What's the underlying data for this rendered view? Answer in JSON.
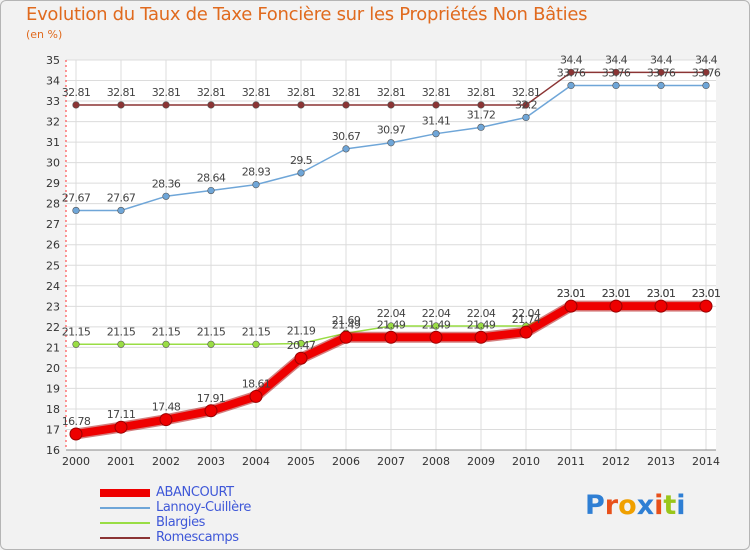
{
  "title": "Evolution du Taux de Taxe Foncière sur les Propriétés Non Bâties",
  "unit": "(en %)",
  "logo": [
    "P",
    "r",
    "o",
    "x",
    "i",
    "t",
    "i"
  ],
  "logo_colors": [
    "#2f7fd4",
    "#e8501a",
    "#f0a000",
    "#2f7fd4",
    "#e8501a",
    "#9ac61a",
    "#2f7fd4"
  ],
  "chart_data": {
    "type": "line",
    "title": "Evolution du Taux de Taxe Foncière sur les Propriétés Non Bâties",
    "ylabel": "(en %)",
    "xlabel": "",
    "x": [
      "2000",
      "2001",
      "2002",
      "2003",
      "2004",
      "2005",
      "2006",
      "2007",
      "2008",
      "2009",
      "2010",
      "2011",
      "2012",
      "2013",
      "2014"
    ],
    "ylim": [
      16,
      35
    ],
    "yticks": [
      16,
      17,
      18,
      19,
      20,
      21,
      22,
      23,
      24,
      25,
      26,
      27,
      28,
      29,
      30,
      31,
      32,
      33,
      34,
      35
    ],
    "grid": true,
    "legend_position": "bottom-left",
    "series": [
      {
        "name": "ABANCOURT",
        "color": "#ee0000",
        "values": [
          16.78,
          17.11,
          17.48,
          17.91,
          18.61,
          20.47,
          21.49,
          21.49,
          21.49,
          21.49,
          21.74,
          23.01,
          23.01,
          23.01,
          23.01
        ],
        "labels": [
          "16.78",
          "17.11",
          "17.48",
          "17.91",
          "18.61",
          "20.47",
          "21.49",
          "21.49",
          "21.49",
          "21.49",
          "21.74",
          "23.01",
          "23.01",
          "23.01",
          "23.01"
        ]
      },
      {
        "name": "Lannoy-Cuillère",
        "color": "#6fa6d8",
        "values": [
          27.67,
          27.67,
          28.36,
          28.64,
          28.93,
          29.5,
          30.67,
          30.97,
          31.41,
          31.72,
          32.2,
          33.76,
          33.76,
          33.76,
          33.76
        ],
        "labels": [
          "27.67",
          "27.67",
          "28.36",
          "28.64",
          "28.93",
          "29.5",
          "30.67",
          "30.97",
          "31.41",
          "31.72",
          "32.2",
          "33.76",
          "33.76",
          "33.76",
          "33.76"
        ]
      },
      {
        "name": "Blargies",
        "color": "#99dd44",
        "values": [
          21.15,
          21.15,
          21.15,
          21.15,
          21.15,
          21.19,
          21.69,
          22.04,
          22.04,
          22.04,
          22.04,
          23.01,
          23.01,
          23.01,
          23.01
        ],
        "labels": [
          "21.15",
          "21.15",
          "21.15",
          "21.15",
          "21.15",
          "21.19",
          "21.69",
          "22.04",
          "22.04",
          "22.04",
          "22.04",
          "23.01",
          "23.01",
          "23.01",
          "23.01"
        ]
      },
      {
        "name": "Romescamps",
        "color": "#8b3434",
        "values": [
          32.81,
          32.81,
          32.81,
          32.81,
          32.81,
          32.81,
          32.81,
          32.81,
          32.81,
          32.81,
          32.81,
          34.4,
          34.4,
          34.4,
          34.4
        ],
        "labels": [
          "32.81",
          "32.81",
          "32.81",
          "32.81",
          "32.81",
          "32.81",
          "32.81",
          "32.81",
          "32.81",
          "32.81",
          "32.81",
          "34.4",
          "34.4",
          "34.4",
          "34.4"
        ]
      }
    ]
  }
}
